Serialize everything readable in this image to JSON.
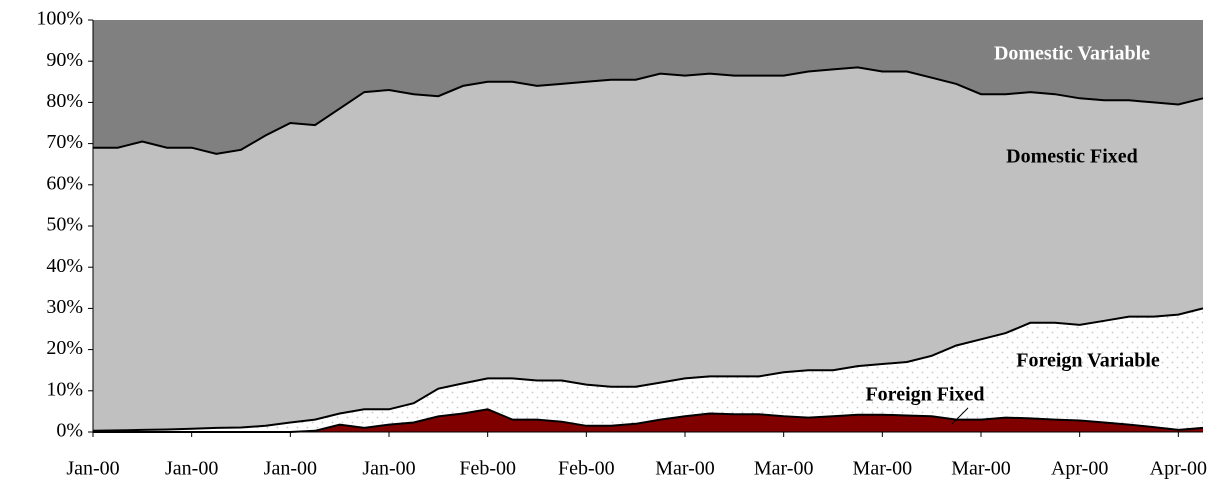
{
  "chart_data": {
    "type": "stacked_area",
    "categories": [
      "Jan-00",
      null,
      null,
      null,
      "Jan-00",
      null,
      null,
      null,
      "Jan-00",
      null,
      null,
      null,
      "Jan-00",
      null,
      null,
      null,
      "Feb-00",
      null,
      null,
      null,
      "Feb-00",
      null,
      null,
      null,
      "Mar-00",
      null,
      null,
      null,
      "Mar-00",
      null,
      null,
      null,
      "Mar-00",
      null,
      null,
      null,
      "Mar-00",
      null,
      null,
      null,
      "Apr-00",
      null,
      null,
      null,
      "Apr-00",
      null
    ],
    "series": [
      {
        "name": "Foreign Fixed",
        "color": "#800000",
        "values": [
          0,
          0,
          0,
          0,
          0,
          0,
          0,
          0,
          0,
          0.3,
          1.8,
          1,
          1.8,
          2.3,
          3.8,
          4.5,
          5.5,
          3,
          3,
          2.5,
          1.5,
          1.5,
          2,
          3,
          3.8,
          4.5,
          4.3,
          4.3,
          3.8,
          3.5,
          3.8,
          4.2,
          4.2,
          4,
          3.8,
          3,
          3,
          3.5,
          3.3,
          3,
          2.8,
          2.3,
          1.8,
          1.2,
          0.5,
          1
        ]
      },
      {
        "name": "Foreign Variable",
        "color": "#ffffff",
        "values": [
          0.3,
          0.4,
          0.5,
          0.6,
          0.8,
          1,
          1.1,
          1.5,
          2.3,
          2.7,
          2.7,
          4.5,
          3.7,
          4.7,
          6.7,
          7.3,
          7.5,
          10,
          9.5,
          10,
          10,
          9.5,
          9,
          9,
          9.2,
          9,
          9.2,
          9.2,
          10.7,
          11.5,
          11.2,
          11.8,
          12.3,
          13,
          14.7,
          18,
          19.5,
          20.5,
          23.2,
          23.5,
          23.2,
          24.7,
          26.2,
          26.8,
          28,
          29
        ]
      },
      {
        "name": "Domestic Fixed",
        "color": "#c0c0c0",
        "values": [
          68.7,
          68.6,
          70,
          68.4,
          68.2,
          66.5,
          67.4,
          70.5,
          72.7,
          71.5,
          74,
          77,
          77.5,
          75,
          71,
          72.2,
          72,
          72,
          71.5,
          72,
          73.5,
          74.5,
          74.5,
          75,
          73.5,
          73.5,
          73,
          73,
          72,
          72.5,
          73,
          72.5,
          71,
          70.5,
          67.5,
          63.5,
          59.5,
          58,
          56,
          55.5,
          55,
          53.5,
          52.5,
          52,
          51,
          51
        ]
      },
      {
        "name": "Domestic Variable",
        "color": "#808080",
        "values": [
          31,
          31,
          29.5,
          31,
          31,
          32.5,
          31.5,
          28,
          25,
          25.5,
          21.5,
          17.5,
          17,
          18,
          18.5,
          16,
          15,
          15,
          16,
          15.5,
          15,
          14.5,
          14.5,
          13,
          13.5,
          13,
          13.5,
          13.5,
          13.5,
          12.5,
          12,
          11.5,
          12.5,
          12.5,
          14,
          15.5,
          18,
          18,
          17.5,
          18,
          19,
          19.5,
          19.5,
          20,
          20.5,
          19
        ]
      }
    ],
    "ylim": [
      0,
      100
    ],
    "yticks": [
      {
        "value": 0,
        "label": "0%"
      },
      {
        "value": 10,
        "label": "10%"
      },
      {
        "value": 20,
        "label": "20%"
      },
      {
        "value": 30,
        "label": "30%"
      },
      {
        "value": 40,
        "label": "40%"
      },
      {
        "value": 50,
        "label": "50%"
      },
      {
        "value": 60,
        "label": "60%"
      },
      {
        "value": 70,
        "label": "70%"
      },
      {
        "value": 80,
        "label": "80%"
      },
      {
        "value": 90,
        "label": "90%"
      },
      {
        "value": 100,
        "label": "100%"
      }
    ]
  }
}
